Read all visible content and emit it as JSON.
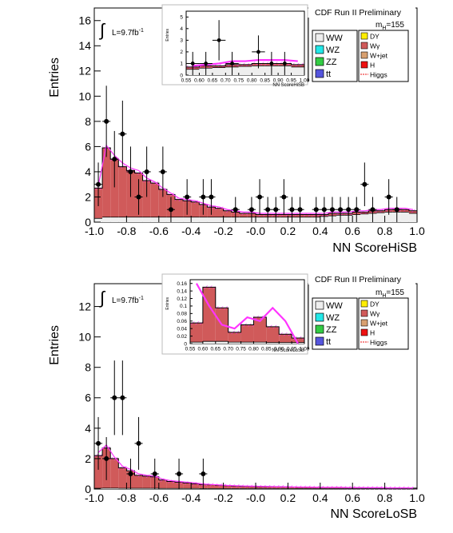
{
  "colors": {
    "ww": "#eeeeee",
    "wz": "#22e8e8",
    "zz": "#33cc44",
    "tt": "#5555dd",
    "dy": "#ffee00",
    "wg": "#d05a5a",
    "wjet": "#d8a070",
    "h": "#ee1111",
    "higgs": "#ee1111",
    "hatch": "#ff33ff",
    "data": "#000000"
  },
  "panels": [
    {
      "header": "CDF Run II Preliminary",
      "ylabel": "Entries",
      "xlabel": "NN ScoreHiSB",
      "lumi_prefix": "L=9.7fb",
      "lumi_sup": "-1",
      "mass_label": "m",
      "mass_sub": "H",
      "mass_value": "=155",
      "legend_left": [
        "WW",
        "WZ",
        "ZZ",
        "tt"
      ],
      "legend_right": [
        "DY",
        "Wγ",
        "W+jet",
        "H",
        "Higgs"
      ],
      "inset_ylabel": "Entries",
      "inset_xlabel": "NN ScoreHiSB"
    },
    {
      "header": "CDF Run II Preliminary",
      "ylabel": "Entries",
      "xlabel": "NN ScoreLoSB",
      "lumi_prefix": "L=9.7fb",
      "lumi_sup": "-1",
      "mass_label": "m",
      "mass_sub": "H",
      "mass_value": "=155",
      "legend_left": [
        "WW",
        "WZ",
        "ZZ",
        "tt"
      ],
      "legend_right": [
        "DY",
        "Wγ",
        "W+jet",
        "H",
        "Higgs"
      ],
      "inset_ylabel": "Entries",
      "inset_xlabel": "NN ScoreLoSB"
    }
  ],
  "chart_data": [
    {
      "type": "bar",
      "title": "CDF Run II Preliminary",
      "xlabel": "NN ScoreHiSB",
      "ylabel": "Entries",
      "xlim": [
        -1.0,
        1.0
      ],
      "ylim": [
        0,
        17
      ],
      "xticks": [
        "-1.0",
        "-0.8",
        "-0.6",
        "-0.4",
        "-0.2",
        "-0.0",
        "0.2",
        "0.4",
        "0.6",
        "0.8",
        "1.0"
      ],
      "yticks": [
        "0",
        "2",
        "4",
        "6",
        "8",
        "10",
        "12",
        "14",
        "16"
      ],
      "bin_edges": [
        -1.0,
        -0.95,
        -0.9,
        -0.85,
        -0.8,
        -0.75,
        -0.7,
        -0.65,
        -0.6,
        -0.55,
        -0.5,
        -0.45,
        -0.4,
        -0.35,
        -0.3,
        -0.25,
        -0.2,
        -0.15,
        -0.1,
        -0.05,
        0.0,
        0.05,
        0.1,
        0.15,
        0.2,
        0.25,
        0.3,
        0.35,
        0.4,
        0.45,
        0.5,
        0.55,
        0.6,
        0.65,
        0.7,
        0.75,
        0.8,
        0.85,
        0.9,
        0.95,
        1.0
      ],
      "stack_total": [
        2.7,
        5.9,
        5.0,
        4.4,
        4.1,
        3.9,
        3.3,
        3.1,
        2.6,
        2.2,
        1.8,
        1.7,
        1.6,
        1.4,
        1.2,
        1.1,
        0.9,
        0.8,
        0.7,
        0.7,
        0.6,
        0.6,
        0.6,
        0.6,
        0.6,
        0.6,
        0.6,
        0.6,
        0.6,
        0.7,
        0.7,
        0.7,
        0.8,
        0.8,
        0.9,
        0.9,
        1.0,
        1.0,
        1.0,
        0.9
      ],
      "other_total": [
        0.3,
        0.4,
        0.4,
        0.4,
        0.4,
        0.4,
        0.4,
        0.4,
        0.4,
        0.4,
        0.4,
        0.4,
        0.4,
        0.4,
        0.4,
        0.4,
        0.4,
        0.4,
        0.4,
        0.4,
        0.4,
        0.4,
        0.4,
        0.4,
        0.4,
        0.4,
        0.4,
        0.4,
        0.45,
        0.5,
        0.55,
        0.55,
        0.6,
        0.65,
        0.7,
        0.75,
        0.8,
        0.8,
        0.8,
        0.7
      ],
      "higgs_overlay": [
        2.9,
        6.1,
        5.3,
        4.7,
        4.3,
        4.1,
        3.5,
        3.2,
        2.7,
        2.3,
        1.9,
        1.8,
        1.7,
        1.5,
        1.3,
        1.2,
        1.0,
        0.9,
        0.8,
        0.8,
        0.7,
        0.7,
        0.7,
        0.7,
        0.7,
        0.7,
        0.7,
        0.7,
        0.7,
        0.8,
        0.8,
        0.8,
        0.9,
        0.9,
        1.0,
        1.0,
        1.1,
        1.1,
        1.1,
        1.0
      ],
      "data_points": [
        {
          "x": -0.975,
          "y": 3
        },
        {
          "x": -0.925,
          "y": 8
        },
        {
          "x": -0.875,
          "y": 5
        },
        {
          "x": -0.825,
          "y": 7
        },
        {
          "x": -0.775,
          "y": 4
        },
        {
          "x": -0.725,
          "y": 2
        },
        {
          "x": -0.675,
          "y": 4
        },
        {
          "x": -0.575,
          "y": 4
        },
        {
          "x": -0.525,
          "y": 1
        },
        {
          "x": -0.475,
          "y": 0
        },
        {
          "x": -0.425,
          "y": 2
        },
        {
          "x": -0.325,
          "y": 2
        },
        {
          "x": -0.275,
          "y": 2
        },
        {
          "x": -0.175,
          "y": 0
        },
        {
          "x": -0.125,
          "y": 1
        },
        {
          "x": -0.025,
          "y": 1
        },
        {
          "x": 0.025,
          "y": 2
        },
        {
          "x": 0.075,
          "y": 1
        },
        {
          "x": 0.125,
          "y": 1
        },
        {
          "x": 0.175,
          "y": 2
        },
        {
          "x": 0.225,
          "y": 1
        },
        {
          "x": 0.275,
          "y": 1
        },
        {
          "x": 0.375,
          "y": 1
        },
        {
          "x": 0.425,
          "y": 1
        },
        {
          "x": 0.475,
          "y": 1
        },
        {
          "x": 0.525,
          "y": 1
        },
        {
          "x": 0.575,
          "y": 1
        },
        {
          "x": 0.625,
          "y": 1
        },
        {
          "x": 0.675,
          "y": 3
        },
        {
          "x": 0.725,
          "y": 1
        },
        {
          "x": 0.775,
          "y": 0
        },
        {
          "x": 0.825,
          "y": 2
        },
        {
          "x": 0.875,
          "y": 1
        }
      ],
      "inset": {
        "xlim": [
          0.55,
          1.0
        ],
        "ylim": [
          0,
          5.5
        ],
        "xticks": [
          "0.55",
          "0.60",
          "0.65",
          "0.70",
          "0.75",
          "0.80",
          "0.85",
          "0.90",
          "0.95",
          "1.00"
        ],
        "yticks": [
          "0",
          "1",
          "2",
          "3",
          "4",
          "5"
        ],
        "bin_edges": [
          0.55,
          0.6,
          0.65,
          0.7,
          0.75,
          0.8,
          0.85,
          0.9,
          0.95,
          1.0
        ],
        "stack_total": [
          0.7,
          0.8,
          0.8,
          0.9,
          0.9,
          1.0,
          1.0,
          1.0,
          0.9
        ],
        "other_total": [
          0.5,
          0.6,
          0.65,
          0.7,
          0.75,
          0.8,
          0.8,
          0.8,
          0.7
        ],
        "higgs_overlay": [
          0.8,
          0.9,
          1.0,
          1.2,
          1.2,
          1.3,
          1.3,
          1.3,
          1.2
        ],
        "data_points": [
          {
            "x": 0.575,
            "y": 1
          },
          {
            "x": 0.625,
            "y": 1
          },
          {
            "x": 0.675,
            "y": 3
          },
          {
            "x": 0.725,
            "y": 1
          },
          {
            "x": 0.825,
            "y": 2
          },
          {
            "x": 0.875,
            "y": 1
          },
          {
            "x": 0.925,
            "y": 1
          }
        ]
      }
    },
    {
      "type": "bar",
      "title": "CDF Run II Preliminary",
      "xlabel": "NN ScoreLoSB",
      "ylabel": "Entries",
      "xlim": [
        -1.0,
        1.0
      ],
      "ylim": [
        0,
        13.5
      ],
      "xticks": [
        "-1.0",
        "-0.8",
        "-0.6",
        "-0.4",
        "-0.2",
        "-0.0",
        "0.2",
        "0.4",
        "0.6",
        "0.8",
        "1.0"
      ],
      "yticks": [
        "0",
        "2",
        "4",
        "6",
        "8",
        "10",
        "12"
      ],
      "bin_edges": [
        -1.0,
        -0.95,
        -0.9,
        -0.85,
        -0.8,
        -0.75,
        -0.7,
        -0.65,
        -0.6,
        -0.55,
        -0.5,
        -0.45,
        -0.4,
        -0.35,
        -0.3,
        -0.25,
        -0.2,
        -0.15,
        -0.1,
        -0.05,
        0.0,
        0.05,
        0.1,
        0.15,
        0.2,
        0.25,
        0.3,
        0.35,
        0.4,
        0.45,
        0.5,
        0.55,
        0.6,
        0.65,
        0.7,
        0.75,
        0.8,
        0.85,
        0.9,
        0.95,
        1.0
      ],
      "stack_total": [
        2.2,
        2.7,
        2.0,
        1.4,
        1.2,
        0.9,
        0.85,
        0.8,
        0.6,
        0.5,
        0.45,
        0.4,
        0.35,
        0.3,
        0.28,
        0.25,
        0.22,
        0.2,
        0.18,
        0.17,
        0.16,
        0.15,
        0.15,
        0.14,
        0.13,
        0.12,
        0.12,
        0.11,
        0.1,
        0.1,
        0.1,
        0.09,
        0.09,
        0.08,
        0.08,
        0.08,
        0.07,
        0.07,
        0.07,
        0.06
      ],
      "other_total": [
        0.05,
        0.06,
        0.06,
        0.05,
        0.05,
        0.05,
        0.05,
        0.05,
        0.04,
        0.04,
        0.04,
        0.04,
        0.04,
        0.03,
        0.03,
        0.03,
        0.03,
        0.03,
        0.03,
        0.03,
        0.03,
        0.03,
        0.03,
        0.03,
        0.03,
        0.03,
        0.03,
        0.03,
        0.03,
        0.03,
        0.03,
        0.03,
        0.03,
        0.03,
        0.03,
        0.03,
        0.03,
        0.03,
        0.03,
        0.03
      ],
      "higgs_overlay": [
        2.4,
        2.9,
        2.1,
        1.5,
        1.3,
        1.0,
        0.9,
        0.85,
        0.65,
        0.55,
        0.5,
        0.45,
        0.4,
        0.33,
        0.3,
        0.27,
        0.24,
        0.22,
        0.2,
        0.19,
        0.18,
        0.17,
        0.16,
        0.15,
        0.14,
        0.13,
        0.13,
        0.12,
        0.11,
        0.11,
        0.11,
        0.1,
        0.1,
        0.09,
        0.09,
        0.09,
        0.08,
        0.08,
        0.08,
        0.07
      ],
      "data_points": [
        {
          "x": -0.975,
          "y": 3
        },
        {
          "x": -0.925,
          "y": 2
        },
        {
          "x": -0.875,
          "y": 6
        },
        {
          "x": -0.825,
          "y": 6
        },
        {
          "x": -0.775,
          "y": 1
        },
        {
          "x": -0.725,
          "y": 3
        },
        {
          "x": -0.675,
          "y": 0
        },
        {
          "x": -0.625,
          "y": 1
        },
        {
          "x": -0.575,
          "y": 0
        },
        {
          "x": -0.475,
          "y": 1
        },
        {
          "x": -0.325,
          "y": 1
        }
      ],
      "inset": {
        "xlim": [
          0.55,
          1.0
        ],
        "ylim": [
          0,
          0.17
        ],
        "xticks": [
          "0.55",
          "0.60",
          "0.65",
          "0.70",
          "0.75",
          "0.80",
          "0.85",
          "0.90",
          "0.95",
          "1.00"
        ],
        "yticks": [
          "0",
          "0.02",
          "0.04",
          "0.06",
          "0.08",
          "0.1",
          "0.12",
          "0.14",
          "0.16"
        ],
        "bin_edges": [
          0.55,
          0.6,
          0.65,
          0.7,
          0.75,
          0.8,
          0.85,
          0.9,
          0.95,
          1.0
        ],
        "stack_total": [
          0.055,
          0.15,
          0.095,
          0.03,
          0.05,
          0.07,
          0.045,
          0.025,
          0.015
        ],
        "other_total": [
          0.004,
          0.006,
          0.006,
          0.004,
          0.004,
          0.004,
          0.003,
          0.003,
          0.003
        ],
        "higgs_overlay": [
          0.16,
          0.1,
          0.05,
          0.04,
          0.07,
          0.06,
          0.095,
          0.06,
          0.0
        ],
        "data_points": []
      }
    }
  ]
}
